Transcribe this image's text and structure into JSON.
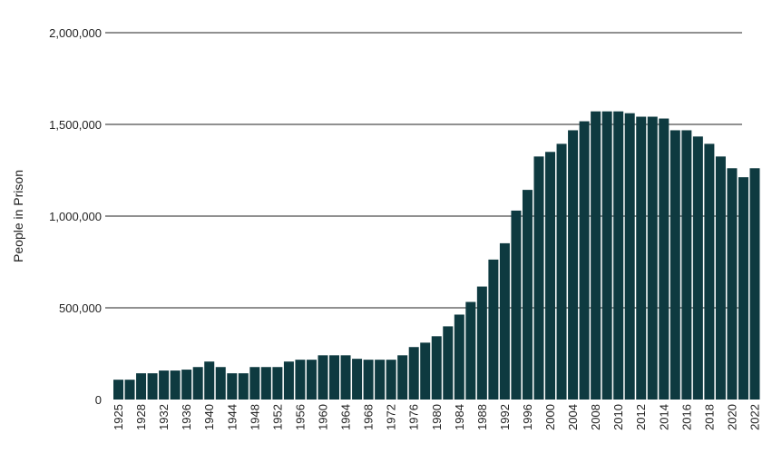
{
  "chart_data": {
    "type": "bar",
    "title": "",
    "xlabel": "",
    "ylabel": "People in Prison",
    "ylim": [
      0,
      2000000
    ],
    "yticks": [
      "0",
      "500,000",
      "1,000,000",
      "1,500,000",
      "2,000,000"
    ],
    "ytick_values": [
      0,
      500000,
      1000000,
      1500000,
      2000000
    ],
    "grid": "horizontal",
    "bar_color": "#0e3a40",
    "categories": [
      1925,
      1926,
      1928,
      1930,
      1932,
      1934,
      1936,
      1938,
      1940,
      1942,
      1944,
      1946,
      1948,
      1950,
      1952,
      1954,
      1956,
      1958,
      1960,
      1962,
      1964,
      1966,
      1968,
      1970,
      1972,
      1974,
      1976,
      1978,
      1980,
      1982,
      1984,
      1986,
      1988,
      1990,
      1992,
      1994,
      1996,
      1998,
      2000,
      2002,
      2004,
      2006,
      2008,
      2009,
      2010,
      2011,
      2012,
      2013,
      2014,
      2015,
      2016,
      2017,
      2018,
      2019,
      2020,
      2021,
      2022
    ],
    "tick_labels": [
      "1925",
      "",
      "1928",
      "",
      "1932",
      "",
      "1936",
      "",
      "1940",
      "",
      "1944",
      "",
      "1948",
      "",
      "1952",
      "",
      "1956",
      "",
      "1960",
      "",
      "1964",
      "",
      "1968",
      "",
      "1972",
      "",
      "1976",
      "",
      "1980",
      "",
      "1984",
      "",
      "1988",
      "",
      "1992",
      "",
      "1996",
      "",
      "2000",
      "",
      "2004",
      "",
      "2008",
      "",
      "2010",
      "",
      "2012",
      "",
      "2014",
      "",
      "2016",
      "",
      "2018",
      "",
      "2020",
      "",
      "2022"
    ],
    "values": [
      108000,
      108000,
      143000,
      143000,
      158000,
      158000,
      163000,
      177000,
      207000,
      177000,
      143000,
      143000,
      177000,
      177000,
      177000,
      207000,
      217000,
      217000,
      241000,
      241000,
      241000,
      222000,
      217000,
      217000,
      217000,
      241000,
      286000,
      310000,
      345000,
      399000,
      463000,
      532000,
      616000,
      763000,
      852000,
      1030000,
      1143000,
      1325000,
      1350000,
      1394000,
      1468000,
      1517000,
      1571000,
      1571000,
      1571000,
      1561000,
      1542000,
      1542000,
      1532000,
      1468000,
      1468000,
      1434000,
      1394000,
      1325000,
      1261000,
      1212000,
      1261000
    ]
  }
}
